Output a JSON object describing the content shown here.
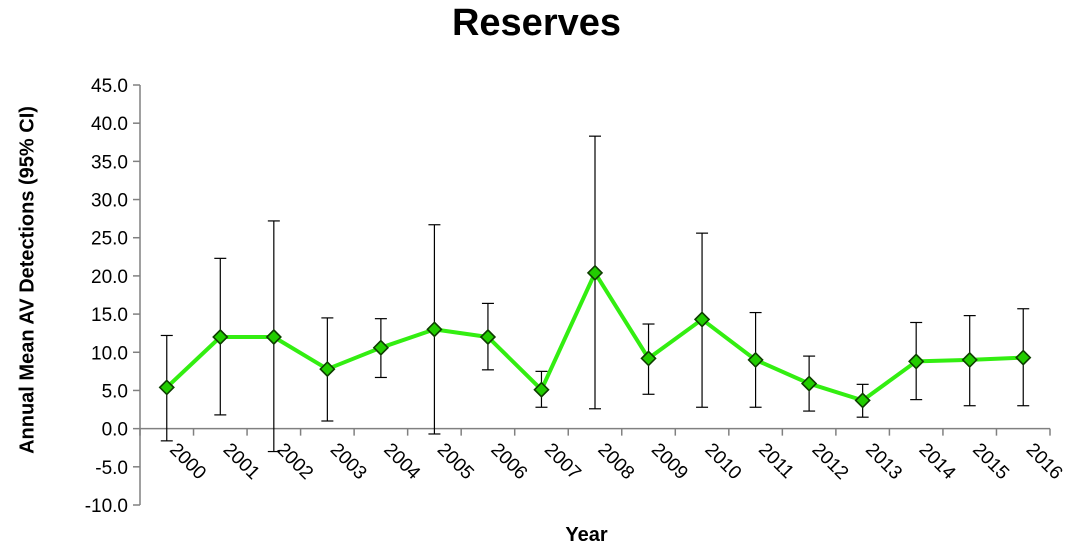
{
  "chart_data": {
    "type": "line",
    "title": "Reserves",
    "xlabel": "Year",
    "ylabel": "Annual Mean AV Detections (95% CI)",
    "ylim": [
      -10.0,
      45.0
    ],
    "yticks": [
      "45.0",
      "40.0",
      "35.0",
      "30.0",
      "25.0",
      "20.0",
      "15.0",
      "10.0",
      "5.0",
      "0.0",
      "-5.0",
      "-10.0"
    ],
    "categories": [
      "2000",
      "2001",
      "2002",
      "2003",
      "2004",
      "2005",
      "2006",
      "2007",
      "2008",
      "2009",
      "2010",
      "2011",
      "2012",
      "2013",
      "2014",
      "2015",
      "2016"
    ],
    "series": [
      {
        "values": [
          5.4,
          12.0,
          12.0,
          7.8,
          10.6,
          13.0,
          12.0,
          5.1,
          20.4,
          9.2,
          14.3,
          9.0,
          5.9,
          3.7,
          8.8,
          9.0,
          9.3
        ],
        "ci_upper": [
          12.2,
          22.3,
          27.2,
          14.5,
          14.4,
          26.7,
          16.4,
          7.5,
          38.3,
          13.7,
          25.6,
          15.2,
          9.5,
          5.8,
          13.9,
          14.8,
          15.7
        ],
        "ci_lower": [
          -1.6,
          1.8,
          -3.0,
          1.0,
          6.7,
          -0.7,
          7.7,
          2.8,
          2.6,
          4.5,
          2.8,
          2.8,
          2.3,
          1.5,
          3.8,
          3.0,
          3.0
        ]
      }
    ],
    "colors": {
      "line": "#33ee11",
      "marker": "#22cc00",
      "marker_edge": "#0d3d00",
      "error_bar": "#000000",
      "axis": "#808080"
    },
    "marker": "diamond",
    "grid": false,
    "legend": "none"
  }
}
